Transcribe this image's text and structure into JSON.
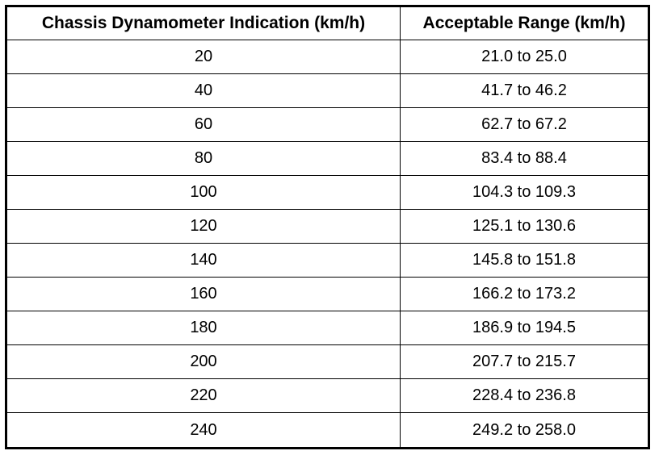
{
  "table": {
    "header": [
      "Chassis Dynamometer Indication (km/h)",
      "Acceptable Range (km/h)"
    ],
    "rows": [
      [
        "20",
        "21.0 to 25.0"
      ],
      [
        "40",
        "41.7 to 46.2"
      ],
      [
        "60",
        "62.7 to 67.2"
      ],
      [
        "80",
        "83.4 to 88.4"
      ],
      [
        "100",
        "104.3 to 109.3"
      ],
      [
        "120",
        "125.1 to 130.6"
      ],
      [
        "140",
        "145.8 to 151.8"
      ],
      [
        "160",
        "166.2 to 173.2"
      ],
      [
        "180",
        "186.9 to 194.5"
      ],
      [
        "200",
        "207.7 to 215.7"
      ],
      [
        "220",
        "228.4 to 236.8"
      ],
      [
        "240",
        "249.2 to 258.0"
      ]
    ]
  }
}
